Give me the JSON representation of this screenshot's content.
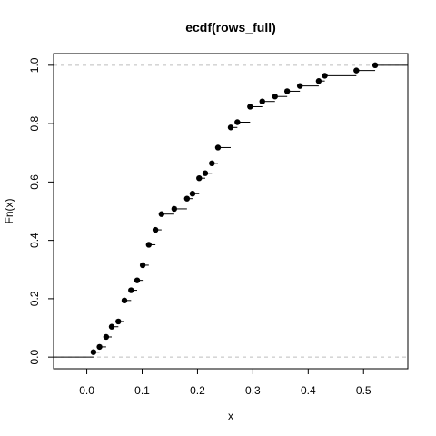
{
  "chart_data": {
    "type": "scatter",
    "subtype": "ecdf-step",
    "title": "ecdf(rows_full)",
    "xlabel": "x",
    "ylabel": "Fn(x)",
    "xlim": [
      -0.06,
      0.58
    ],
    "ylim": [
      -0.04,
      1.04
    ],
    "x_ticks": [
      0.0,
      0.1,
      0.2,
      0.3,
      0.4,
      0.5
    ],
    "x_tick_labels": [
      "0.0",
      "0.1",
      "0.2",
      "0.3",
      "0.4",
      "0.5"
    ],
    "y_ticks": [
      0.0,
      0.2,
      0.4,
      0.6,
      0.8,
      1.0
    ],
    "y_tick_labels": [
      "0.0",
      "0.2",
      "0.4",
      "0.6",
      "0.8",
      "1.0"
    ],
    "reference_lines": [
      0,
      1
    ],
    "grid": false,
    "legend": "none",
    "x": [
      0.012,
      0.023,
      0.035,
      0.045,
      0.057,
      0.068,
      0.08,
      0.091,
      0.101,
      0.112,
      0.124,
      0.135,
      0.158,
      0.181,
      0.191,
      0.203,
      0.214,
      0.226,
      0.237,
      0.26,
      0.272,
      0.295,
      0.317,
      0.34,
      0.362,
      0.385,
      0.419,
      0.43,
      0.487,
      0.521
    ],
    "y": [
      0.017,
      0.035,
      0.069,
      0.104,
      0.122,
      0.194,
      0.229,
      0.263,
      0.315,
      0.385,
      0.436,
      0.49,
      0.508,
      0.543,
      0.56,
      0.613,
      0.63,
      0.664,
      0.718,
      0.787,
      0.805,
      0.858,
      0.876,
      0.893,
      0.911,
      0.929,
      0.946,
      0.964,
      0.982,
      1.0
    ],
    "colors": {
      "points": "#000000",
      "steps": "#000000",
      "reference": "#bebebe",
      "axis": "#000000"
    }
  }
}
